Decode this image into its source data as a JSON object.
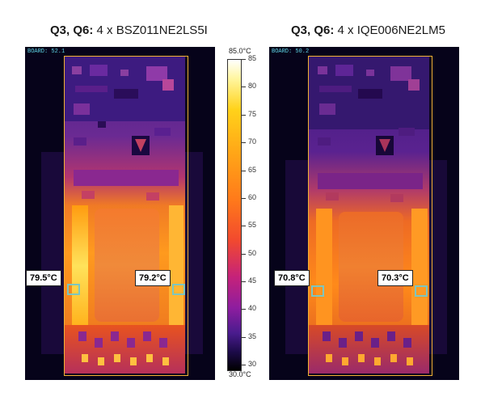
{
  "left_panel": {
    "title_bold": "Q3, Q6:",
    "title_rest": " 4 x BSZ011NE2LS5I",
    "board_label": "BOARD: 52.1",
    "hotspot_left": "79.5°C",
    "hotspot_right": "79.2°C"
  },
  "right_panel": {
    "title_bold": "Q3, Q6:",
    "title_rest": " 4 x IQE006NE2LM5",
    "board_label": "BOARD: 50.2",
    "hotspot_left": "70.8°C",
    "hotspot_right": "70.3°C"
  },
  "scale": {
    "max_label": "85.0°C",
    "min_label": "30.0°C",
    "ticks": [
      "85",
      "80",
      "75",
      "70",
      "65",
      "60",
      "55",
      "50",
      "45",
      "40",
      "35",
      "30"
    ]
  }
}
